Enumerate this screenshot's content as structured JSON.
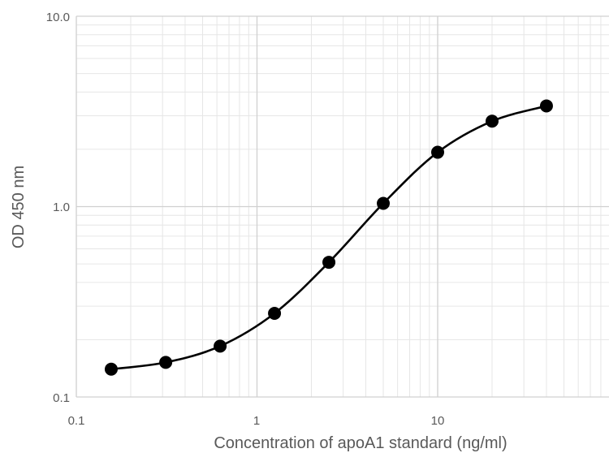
{
  "chart_data": {
    "type": "scatter",
    "title": "",
    "xlabel": "Concentration of apoA1 standard (ng/ml)",
    "ylabel": "OD 450 nm",
    "x_scale": "log",
    "y_scale": "log",
    "xlim": [
      0.1,
      100
    ],
    "ylim": [
      0.1,
      10
    ],
    "x_ticks": [
      0.1,
      1,
      10
    ],
    "x_tick_labels": [
      "0.1",
      "1",
      "10"
    ],
    "y_ticks": [
      0.1,
      1,
      10
    ],
    "y_tick_labels": [
      "0.1",
      "1.0",
      "10.0"
    ],
    "grid": "major and minor",
    "legend": "none",
    "smooth_line": true,
    "colors": {
      "series": "#000000",
      "major_grid": "#d0d0d0",
      "minor_grid": "#e6e6e6",
      "text": "#595959"
    },
    "series": [
      {
        "x": [
          0.156,
          0.3125,
          0.625,
          1.25,
          2.5,
          5,
          10,
          20,
          40
        ],
        "y": [
          0.14,
          0.152,
          0.185,
          0.275,
          0.51,
          1.04,
          1.93,
          2.81,
          3.38
        ]
      }
    ]
  }
}
